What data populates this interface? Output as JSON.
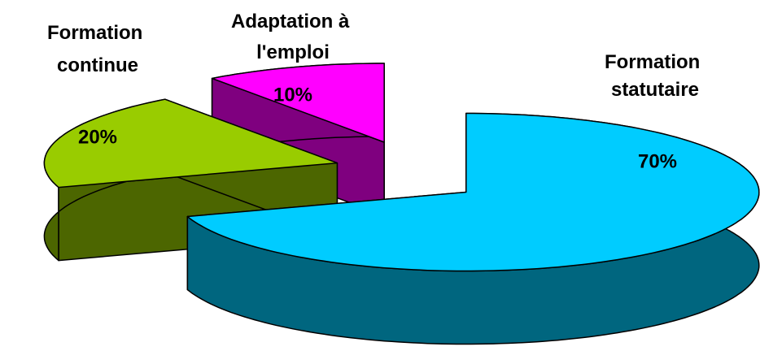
{
  "chart_data": {
    "type": "pie",
    "categories": [
      "Formation statutaire",
      "Formation continue",
      "Adaptation à l'emploi"
    ],
    "values": [
      70,
      20,
      10
    ],
    "value_labels": [
      "70%",
      "20%",
      "10%"
    ],
    "colors": [
      "#00ccff",
      "#99cc00",
      "#ff00ff"
    ]
  }
}
